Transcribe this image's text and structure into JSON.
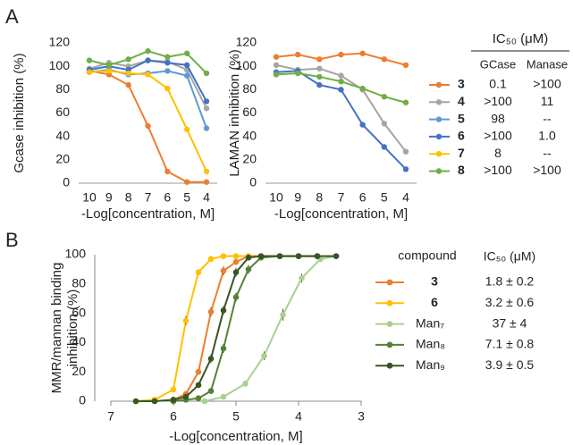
{
  "panel_labels": [
    "A",
    "B"
  ],
  "chart_data": [
    {
      "type": "line",
      "y_label": "Gcase inhibition (%)",
      "x_label": "-Log[concentration, M]",
      "categories": [
        "10",
        "9",
        "8",
        "7",
        "6",
        "5",
        "4"
      ],
      "ylim": [
        0,
        120
      ],
      "yticks": [
        0,
        20,
        40,
        60,
        80,
        100,
        120
      ],
      "table_header": "IC₅₀ (μM)",
      "table_columns": [
        "GCase",
        "Manase"
      ],
      "series": [
        {
          "name": "3",
          "color": "#ed7d31",
          "values": [
            96,
            93,
            84,
            49,
            10,
            1,
            1
          ],
          "ic50": [
            "0.1",
            ">100"
          ]
        },
        {
          "name": "4",
          "color": "#a5a5a5",
          "values": [
            98,
            103,
            100,
            105,
            104,
            97,
            64
          ],
          "ic50": [
            ">100",
            "11"
          ]
        },
        {
          "name": "5",
          "color": "#5b9bd5",
          "values": [
            95,
            97,
            93,
            94,
            96,
            92,
            47
          ],
          "ic50": [
            "98",
            "--"
          ]
        },
        {
          "name": "6",
          "color": "#4472c4",
          "values": [
            97,
            100,
            97,
            105,
            103,
            101,
            70
          ],
          "ic50": [
            ">100",
            "1.0"
          ]
        },
        {
          "name": "7",
          "color": "#ffc000",
          "values": [
            95,
            96,
            94,
            93,
            81,
            46,
            10
          ],
          "ic50": [
            "8",
            "--"
          ]
        },
        {
          "name": "8",
          "color": "#70ad47",
          "values": [
            105,
            101,
            106,
            113,
            108,
            111,
            94
          ],
          "ic50": [
            ">100",
            ">100"
          ]
        }
      ]
    },
    {
      "type": "line",
      "y_label": "LAMAN inhibition (%)",
      "x_label": "-Log[concentration, M]",
      "categories": [
        "10",
        "9",
        "8",
        "7",
        "6",
        "5",
        "4"
      ],
      "ylim": [
        0,
        120
      ],
      "yticks": [
        0,
        20,
        40,
        60,
        80,
        100,
        120
      ],
      "series": [
        {
          "color": "#ed7d31",
          "values": [
            108,
            110,
            106,
            110,
            111,
            106,
            101
          ]
        },
        {
          "color": "#a5a5a5",
          "values": [
            101,
            97,
            98,
            92,
            80,
            51,
            27
          ]
        },
        {
          "color": "#4472c4",
          "values": [
            95,
            96,
            84,
            80,
            50,
            31,
            12
          ]
        },
        {
          "color": "#70ad47",
          "values": [
            93,
            94,
            91,
            87,
            81,
            74,
            69
          ]
        }
      ]
    },
    {
      "type": "scatter",
      "y_label": [
        "MMR/mannan binding",
        "inhibition (%)"
      ],
      "x_label": "-Log[concentration, M]",
      "xlim": [
        7,
        3
      ],
      "xticks": [
        7,
        6,
        5,
        4,
        3
      ],
      "ylim": [
        0,
        100
      ],
      "yticks": [
        0,
        20,
        40,
        60,
        80,
        100
      ],
      "legend_header": "compound",
      "value_header": "IC₅₀ (μM)",
      "series": [
        {
          "name": "3",
          "bold": true,
          "color": "#ed7d31",
          "ic50": "1.8 ± 0.2",
          "x": [
            6.0,
            5.8,
            5.6,
            5.4,
            5.2,
            5.0,
            4.8,
            4.6,
            4.3,
            4.0,
            3.7
          ],
          "values": [
            1,
            5,
            20,
            61,
            89,
            95,
            99,
            99,
            99,
            99,
            99
          ],
          "errors": [
            1,
            1,
            2,
            3,
            3,
            2,
            1,
            1,
            1,
            1,
            1
          ]
        },
        {
          "name": "6",
          "bold": true,
          "color": "#ffc000",
          "ic50": "3.2 ± 0.6",
          "x": [
            6.6,
            6.3,
            6.0,
            5.8,
            5.6,
            5.4,
            5.2,
            5.0,
            4.8
          ],
          "values": [
            0,
            1,
            8,
            55,
            88,
            97,
            99,
            99,
            99
          ],
          "errors": [
            1,
            1,
            2,
            3,
            2,
            1,
            1,
            1,
            1
          ]
        },
        {
          "name": "Man₇",
          "bold": false,
          "color": "#a9d18e",
          "ic50": "37 ± 4",
          "x": [
            5.5,
            5.2,
            4.85,
            4.55,
            4.25,
            3.95,
            3.65,
            3.4
          ],
          "values": [
            0,
            3,
            12,
            31,
            59,
            84,
            97,
            99
          ],
          "errors": [
            1,
            1,
            2,
            3,
            4,
            3,
            2,
            1
          ]
        },
        {
          "name": "Man₈",
          "bold": false,
          "color": "#548235",
          "ic50": "7.1 ± 0.8",
          "x": [
            6.0,
            5.8,
            5.6,
            5.4,
            5.2,
            5.0,
            4.8,
            4.6,
            4.3,
            4.0,
            3.7
          ],
          "values": [
            0,
            1,
            2,
            7,
            36,
            71,
            90,
            98,
            99,
            99,
            99
          ],
          "errors": [
            1,
            1,
            1,
            2,
            3,
            3,
            3,
            2,
            1,
            1,
            1
          ]
        },
        {
          "name": "Man₉",
          "bold": false,
          "color": "#375623",
          "ic50": "3.9 ± 0.5",
          "x": [
            6.6,
            6.3,
            6.0,
            5.8,
            5.6,
            5.4,
            5.2,
            5.0,
            4.8,
            4.6,
            4.3,
            4.0,
            3.7,
            3.4
          ],
          "values": [
            0,
            0,
            1,
            3,
            11,
            29,
            62,
            88,
            98,
            99,
            99,
            99,
            99,
            99
          ],
          "errors": [
            1,
            1,
            1,
            1,
            2,
            3,
            3,
            3,
            2,
            1,
            1,
            1,
            1,
            1
          ]
        }
      ]
    }
  ]
}
